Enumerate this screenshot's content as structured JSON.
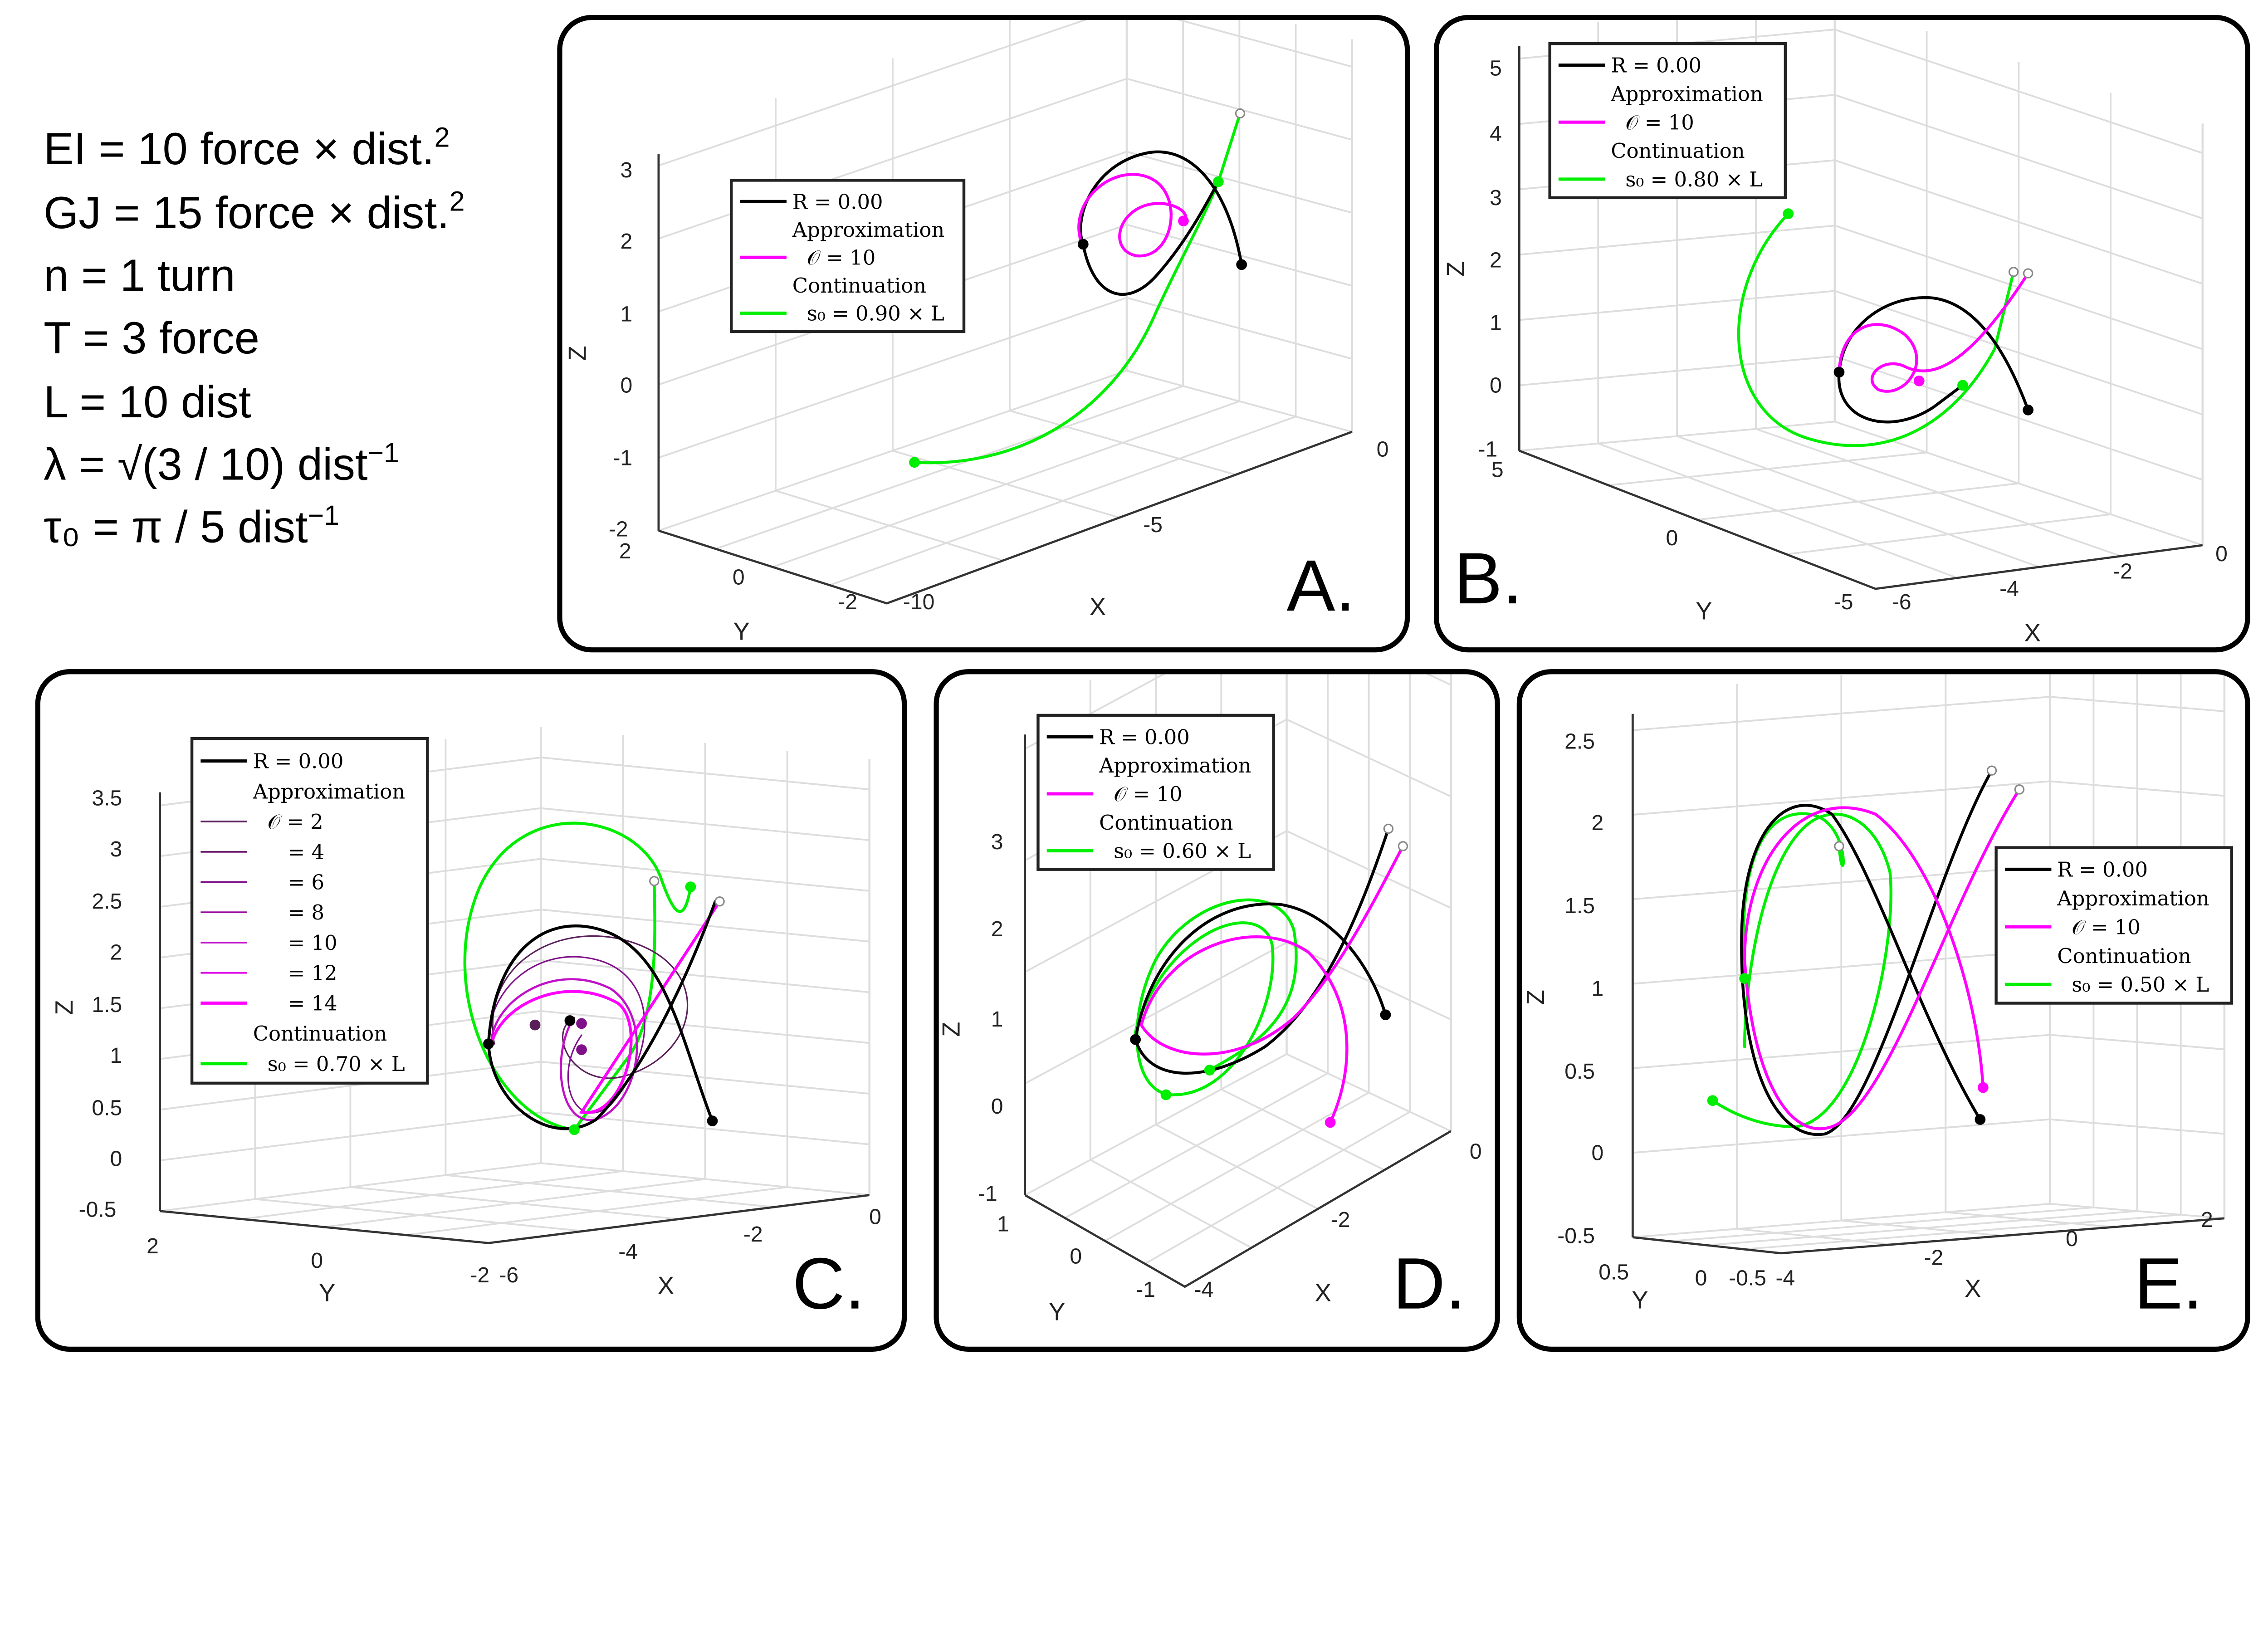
{
  "parameters": [
    {
      "text": "EI = 10 force × dist.",
      "sup": "2"
    },
    {
      "text": "GJ = 15 force × dist.",
      "sup": "2"
    },
    {
      "text": "n = 1 turn",
      "sup": ""
    },
    {
      "text": "T = 3 force",
      "sup": ""
    },
    {
      "text": "L = 10 dist",
      "sup": ""
    },
    {
      "text": "λ = √(3 / 10) dist",
      "sup": "−1"
    },
    {
      "text": "τ₀ = π / 5 dist",
      "sup": "−1"
    }
  ],
  "colors": {
    "exact": "#000000",
    "approximation": "#ff00ff",
    "continuation": "#00ee00",
    "grid": "#dddddd",
    "frame": "#000000"
  },
  "chart_data": [
    {
      "type": "line",
      "panel_label": "A.",
      "projection": "3d",
      "xlabel": "X",
      "ylabel": "Y",
      "zlabel": "Z",
      "xticks": [
        "-10",
        "-5",
        "0"
      ],
      "yticks": [
        "2",
        "0",
        "-2"
      ],
      "zticks": [
        "3",
        "2",
        "1",
        "0",
        "-1",
        "-2"
      ],
      "xlim": [
        -10,
        0
      ],
      "ylim": [
        -2,
        2
      ],
      "zlim": [
        -2,
        3
      ],
      "grid": true,
      "legend_position": "top-left",
      "legend": [
        {
          "text": "R = 0.00",
          "series": "exact"
        },
        {
          "text": "Approximation",
          "series": ""
        },
        {
          "text": "𝒪 = 10",
          "series": "approximation"
        },
        {
          "text": "Continuation",
          "series": ""
        },
        {
          "text": "s₀ = 0.90 × L",
          "series": "continuation"
        }
      ]
    },
    {
      "type": "line",
      "panel_label": "B.",
      "projection": "3d",
      "xlabel": "X",
      "ylabel": "Y",
      "zlabel": "Z",
      "xticks": [
        "-6",
        "-4",
        "-2",
        "0"
      ],
      "yticks": [
        "5",
        "0",
        "-5"
      ],
      "zticks": [
        "5",
        "4",
        "3",
        "2",
        "1",
        "0",
        "-1"
      ],
      "xlim": [
        -6,
        0
      ],
      "ylim": [
        -5,
        5
      ],
      "zlim": [
        -1,
        5
      ],
      "grid": true,
      "legend_position": "top-left",
      "legend": [
        {
          "text": "R = 0.00",
          "series": "exact"
        },
        {
          "text": "Approximation",
          "series": ""
        },
        {
          "text": "𝒪 = 10",
          "series": "approximation"
        },
        {
          "text": "Continuation",
          "series": ""
        },
        {
          "text": "s₀ = 0.80 × L",
          "series": "continuation"
        }
      ]
    },
    {
      "type": "line",
      "panel_label": "C.",
      "projection": "3d",
      "xlabel": "X",
      "ylabel": "Y",
      "zlabel": "Z",
      "xticks": [
        "-6",
        "-4",
        "-2",
        "0"
      ],
      "yticks": [
        "2",
        "0",
        "-2"
      ],
      "zticks": [
        "3.5",
        "3",
        "2.5",
        "2",
        "1.5",
        "1",
        "0.5",
        "0",
        "-0.5"
      ],
      "xlim": [
        -6,
        0
      ],
      "ylim": [
        -2,
        2
      ],
      "zlim": [
        -0.5,
        3.5
      ],
      "grid": true,
      "legend_position": "top-left",
      "legend": [
        {
          "text": "R = 0.00",
          "series": "exact"
        },
        {
          "text": "Approximation",
          "series": ""
        },
        {
          "text": "𝒪 = 2",
          "series": "approx-2"
        },
        {
          "text": "= 4",
          "series": "approx-4"
        },
        {
          "text": "= 6",
          "series": "approx-6"
        },
        {
          "text": "= 8",
          "series": "approx-8"
        },
        {
          "text": "= 10",
          "series": "approx-10"
        },
        {
          "text": "= 12",
          "series": "approx-12"
        },
        {
          "text": "= 14",
          "series": "approx-14"
        },
        {
          "text": "Continuation",
          "series": ""
        },
        {
          "text": "s₀ = 0.70 × L",
          "series": "continuation"
        }
      ]
    },
    {
      "type": "line",
      "panel_label": "D.",
      "projection": "3d",
      "xlabel": "X",
      "ylabel": "Y",
      "zlabel": "Z",
      "xticks": [
        "-4",
        "-2",
        "0"
      ],
      "yticks": [
        "1",
        "0",
        "-1"
      ],
      "zticks": [
        "3",
        "2",
        "1",
        "0",
        "-1"
      ],
      "xlim": [
        -4,
        0
      ],
      "ylim": [
        -1,
        1
      ],
      "zlim": [
        -1,
        3
      ],
      "grid": true,
      "legend_position": "top-left",
      "legend": [
        {
          "text": "R = 0.00",
          "series": "exact"
        },
        {
          "text": "Approximation",
          "series": ""
        },
        {
          "text": "𝒪 = 10",
          "series": "approximation"
        },
        {
          "text": "Continuation",
          "series": ""
        },
        {
          "text": "s₀ = 0.60 × L",
          "series": "continuation"
        }
      ]
    },
    {
      "type": "line",
      "panel_label": "E.",
      "projection": "3d",
      "xlabel": "X",
      "ylabel": "Y",
      "zlabel": "Z",
      "xticks": [
        "-4",
        "-2",
        "0",
        "2"
      ],
      "yticks": [
        "0.5",
        "0",
        "-0.5"
      ],
      "zticks": [
        "2.5",
        "2",
        "1.5",
        "1",
        "0.5",
        "0",
        "-0.5"
      ],
      "xlim": [
        -4,
        2
      ],
      "ylim": [
        -0.5,
        0.5
      ],
      "zlim": [
        -0.5,
        2.5
      ],
      "grid": true,
      "legend_position": "top-right",
      "legend": [
        {
          "text": "R = 0.00",
          "series": "exact"
        },
        {
          "text": "Approximation",
          "series": ""
        },
        {
          "text": "𝒪 = 10",
          "series": "approximation"
        },
        {
          "text": "Continuation",
          "series": ""
        },
        {
          "text": "s₀ = 0.50 × L",
          "series": "continuation"
        }
      ]
    }
  ]
}
